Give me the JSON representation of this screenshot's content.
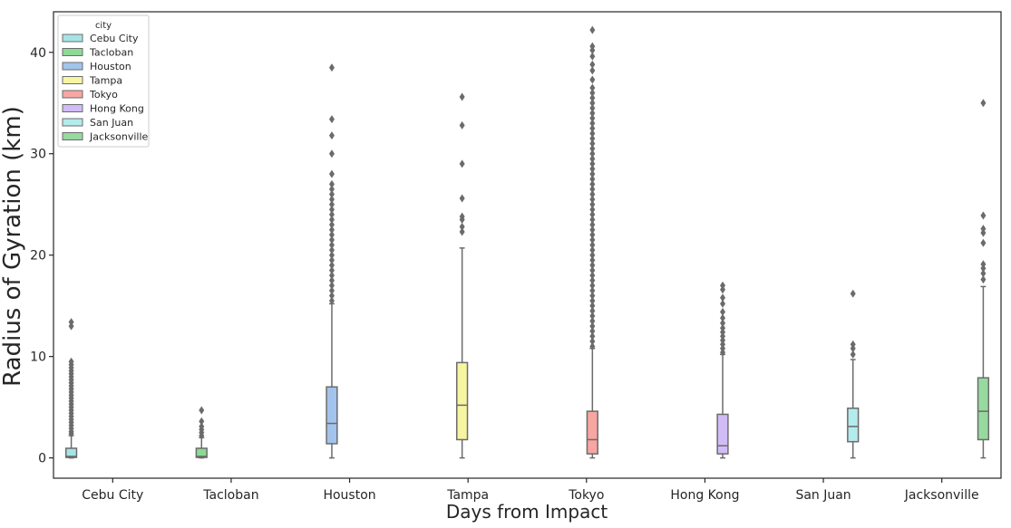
{
  "chart_data": {
    "type": "box",
    "title": "",
    "xlabel": "Days from Impact",
    "ylabel": "Radius of Gyration (km)",
    "ylim": [
      -2,
      44
    ],
    "yticks": [
      0,
      10,
      20,
      30,
      40
    ],
    "categories": [
      "Cebu City",
      "Tacloban",
      "Houston",
      "Tampa",
      "Tokyo",
      "Hong Kong",
      "San Juan",
      "Jacksonville"
    ],
    "legend": {
      "title": "city",
      "position": "top-left",
      "entries": [
        "Cebu City",
        "Tacloban",
        "Houston",
        "Tampa",
        "Tokyo",
        "Hong Kong",
        "San Juan",
        "Jacksonville"
      ]
    },
    "series": [
      {
        "category": "Cebu City",
        "hue_slot": 0,
        "color": "#a6e4e4",
        "min": 0,
        "q1": 0.05,
        "median": 0.15,
        "q3": 0.95,
        "max": 2.2,
        "outliers": [
          2.4,
          2.6,
          2.9,
          3.2,
          3.5,
          3.8,
          4.1,
          4.4,
          4.7,
          5.0,
          5.3,
          5.6,
          5.9,
          6.2,
          6.5,
          6.8,
          7.1,
          7.4,
          7.7,
          8.0,
          8.3,
          8.6,
          8.9,
          9.2,
          9.5,
          13.0,
          13.4
        ]
      },
      {
        "category": "Tacloban",
        "hue_slot": 1,
        "color": "#8ed994",
        "min": 0,
        "q1": 0.05,
        "median": 0.15,
        "q3": 0.95,
        "max": 2.0,
        "outliers": [
          2.2,
          2.5,
          2.8,
          3.1,
          3.6,
          4.7
        ]
      },
      {
        "category": "Houston",
        "hue_slot": 2,
        "color": "#a2c4ec",
        "min": 0,
        "q1": 1.4,
        "median": 3.4,
        "q3": 7.0,
        "max": 15.2,
        "outliers": [
          15.5,
          16.0,
          16.5,
          17.0,
          17.5,
          18.0,
          18.5,
          19.0,
          19.5,
          20.0,
          20.5,
          21.0,
          21.5,
          22.0,
          22.5,
          23.0,
          23.5,
          24.0,
          24.5,
          25.0,
          25.5,
          26.0,
          26.5,
          27.0,
          28.0,
          30.0,
          31.8,
          33.4,
          38.5
        ]
      },
      {
        "category": "Tampa",
        "hue_slot": 3,
        "color": "#f6f5a2",
        "min": 0,
        "q1": 1.8,
        "median": 5.2,
        "q3": 9.4,
        "max": 20.7,
        "outliers": [
          22.3,
          22.8,
          23.5,
          23.8,
          25.6,
          29.0,
          32.8,
          35.6
        ]
      },
      {
        "category": "Tokyo",
        "hue_slot": 4,
        "color": "#f7a6a2",
        "min": 0,
        "q1": 0.4,
        "median": 1.8,
        "q3": 4.6,
        "max": 10.8,
        "outliers": [
          11,
          11.5,
          12,
          12.5,
          13,
          13.5,
          14,
          14.5,
          15,
          15.5,
          16,
          16.5,
          17,
          17.5,
          18,
          18.5,
          19,
          19.5,
          20,
          20.5,
          21,
          21.5,
          22,
          22.5,
          23,
          23.5,
          24,
          24.5,
          25,
          25.5,
          26,
          26.5,
          27,
          27.5,
          28,
          28.5,
          29,
          29.5,
          30,
          30.5,
          31,
          31.5,
          32,
          32.5,
          33,
          33.5,
          34,
          34.5,
          35,
          35.5,
          36,
          36.5,
          37.3,
          38.2,
          38.8,
          39.6,
          40.2,
          40.6,
          42.2
        ]
      },
      {
        "category": "Hong Kong",
        "hue_slot": 5,
        "color": "#d1bcf6",
        "min": 0,
        "q1": 0.4,
        "median": 1.2,
        "q3": 4.3,
        "max": 10.2,
        "outliers": [
          10.4,
          10.8,
          11.2,
          11.6,
          12.0,
          12.4,
          12.8,
          13.3,
          13.8,
          14.4,
          15.2,
          15.8,
          16.6,
          17.0
        ]
      },
      {
        "category": "San Juan",
        "hue_slot": 6,
        "color": "#b4ebec",
        "min": 0,
        "q1": 1.6,
        "median": 3.1,
        "q3": 4.9,
        "max": 9.7,
        "outliers": [
          10.2,
          10.8,
          11.2,
          16.2
        ]
      },
      {
        "category": "Jacksonville",
        "hue_slot": 7,
        "color": "#98d9a0",
        "min": 0,
        "q1": 1.8,
        "median": 4.6,
        "q3": 7.9,
        "max": 16.9,
        "outliers": [
          17.6,
          18.2,
          18.7,
          19.1,
          21.2,
          22.2,
          22.6,
          23.9,
          35.0
        ]
      }
    ]
  }
}
